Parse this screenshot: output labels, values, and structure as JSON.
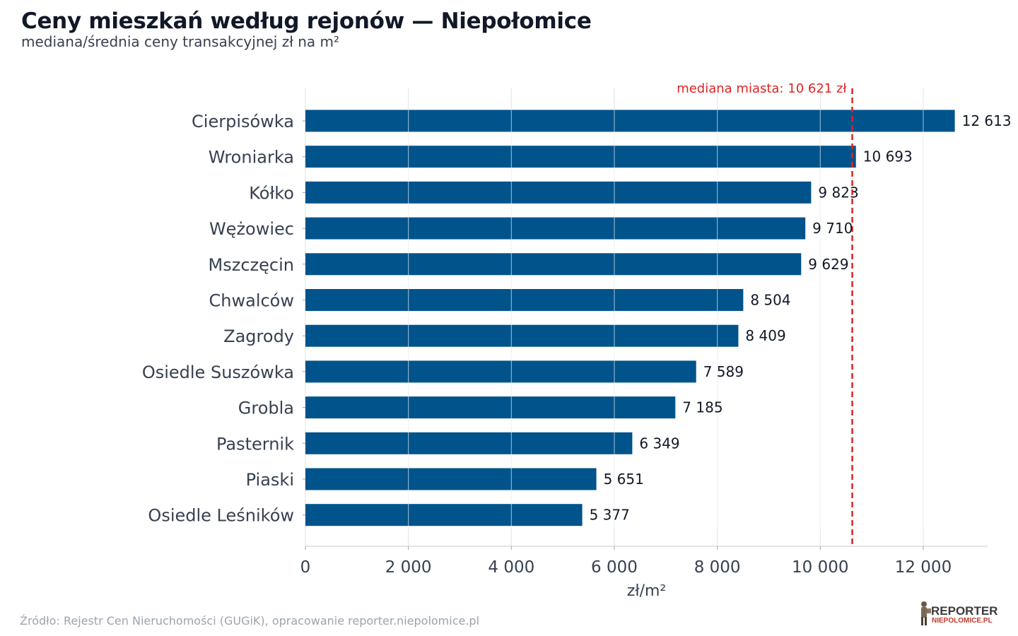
{
  "title": "Ceny mieszkań według rejonów — Niepołomice",
  "subtitle": "mediana/średnia ceny transakcyjnej zł na m²",
  "source": "Źródło: Rejestr Cen Nieruchomości (GUGiK), opracowanie reporter.niepolomice.pl",
  "logo": {
    "line1": "REPORTER",
    "line2": "NIEPOLOMICE.PL"
  },
  "colors": {
    "bar": "#00538b",
    "median": "#e02424",
    "grid": "#e5e7eb",
    "text": "#374151"
  },
  "chart_data": {
    "type": "bar",
    "orientation": "horizontal",
    "categories": [
      "Cierpisówka",
      "Wroniarka",
      "Kółko",
      "Wężowiec",
      "Mszczęcin",
      "Chwalców",
      "Zagrody",
      "Osiedle Suszówka",
      "Grobla",
      "Pasternik",
      "Piaski",
      "Osiedle Leśników"
    ],
    "values": [
      12613,
      10693,
      9823,
      9710,
      9629,
      8504,
      8409,
      7589,
      7185,
      6349,
      5651,
      5377
    ],
    "value_labels": [
      "12 613",
      "10 693",
      "9 823",
      "9 710",
      "9 629",
      "8 504",
      "8 409",
      "7 589",
      "7 185",
      "6 349",
      "5 651",
      "5 377"
    ],
    "xlabel": "zł/m²",
    "ylabel": "",
    "xlim": [
      0,
      13250
    ],
    "xticks": [
      0,
      2000,
      4000,
      6000,
      8000,
      10000,
      12000
    ],
    "xtick_labels": [
      "0",
      "2 000",
      "4 000",
      "6 000",
      "8 000",
      "10 000",
      "12 000"
    ],
    "grid": true,
    "reference_line": {
      "value": 10621,
      "label": "mediana miasta: 10 621 zł",
      "style": "dashed"
    }
  }
}
